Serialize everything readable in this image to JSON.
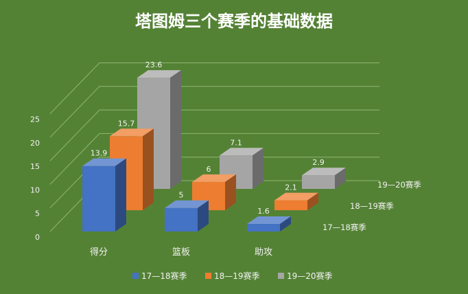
{
  "chart_data": {
    "type": "bar",
    "title": "塔图姆三个赛季的基础数据",
    "categories": [
      "得分",
      "篮板",
      "助攻"
    ],
    "series": [
      {
        "name": "17—18赛季",
        "values": [
          13.9,
          5,
          1.6
        ],
        "color": "#4472C4"
      },
      {
        "name": "18—19赛季",
        "values": [
          15.7,
          6,
          2.1
        ],
        "color": "#ED7D31"
      },
      {
        "name": "19—20赛季",
        "values": [
          23.6,
          7.1,
          2.9
        ],
        "color": "#A5A5A5"
      }
    ],
    "ylim": [
      0,
      25
    ],
    "yticks": [
      "0",
      "5",
      "10",
      "15",
      "20",
      "25"
    ],
    "grid": true,
    "legend": "bottom",
    "background": "#548235"
  }
}
